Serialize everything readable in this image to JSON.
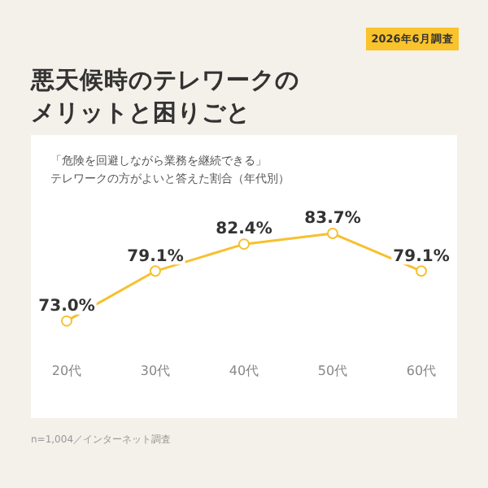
{
  "chart_data": {
    "type": "line",
    "title": "悪天候時のテレワークのメリットと困りごと",
    "subtitle": "「危険を回避しながら業務を継続できる」テレワークの方がよいと答えた割合（年代別）",
    "annotations": [
      "2026年6月調査",
      "n=1,004／インターネット調査"
    ],
    "categories": [
      "20代",
      "30代",
      "40代",
      "50代",
      "60代"
    ],
    "series": [
      {
        "color": "#f7c02f",
        "values": [
          73.0,
          79.1,
          82.4,
          83.7,
          79.1
        ],
        "value_labels": [
          "73.0%",
          "79.1%",
          "82.4%",
          "83.7%",
          "79.1%"
        ]
      }
    ],
    "tick_labels": "x",
    "legend": false,
    "marker": "circle",
    "line_style": "solid"
  }
}
